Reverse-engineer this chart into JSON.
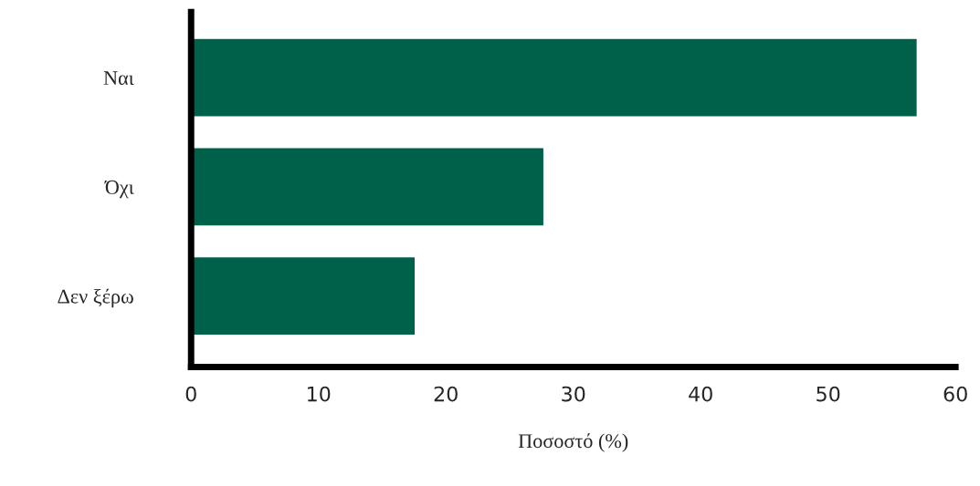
{
  "chart_data": {
    "type": "bar",
    "orientation": "horizontal",
    "categories": [
      "Ναι",
      "Όχι",
      "Δεν ξέρω"
    ],
    "values": [
      57,
      27.7,
      17.6
    ],
    "color": "#00614b",
    "xlabel": "Ποσοστό (%)",
    "xlim": [
      0,
      60
    ],
    "xticks": [
      0,
      10,
      20,
      30,
      40,
      50,
      60
    ],
    "grid": false,
    "legend": false
  }
}
